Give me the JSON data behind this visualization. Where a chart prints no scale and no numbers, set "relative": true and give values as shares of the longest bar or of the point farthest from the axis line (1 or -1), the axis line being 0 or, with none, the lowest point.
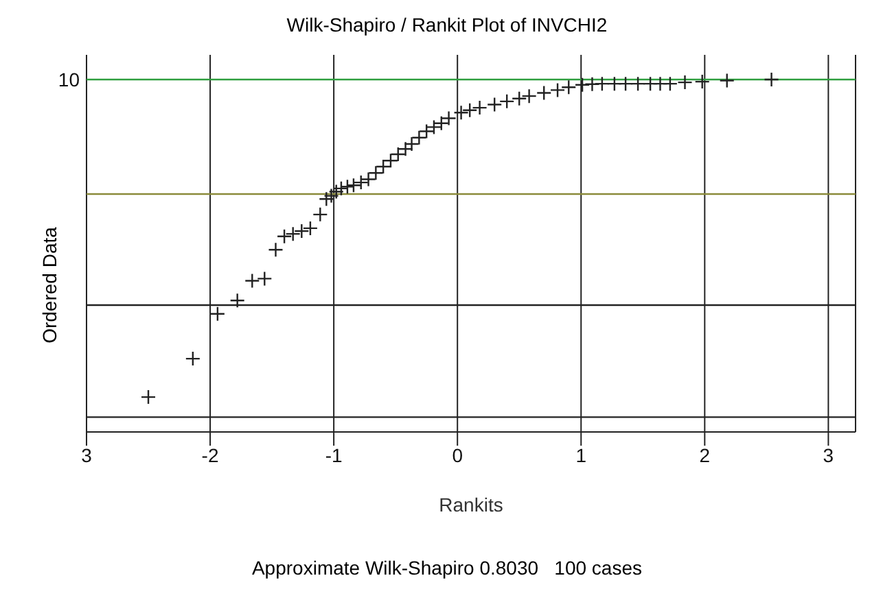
{
  "chart_data": {
    "type": "scatter",
    "title": "Wilk-Shapiro / Rankit Plot of INVCHI2",
    "xlabel": "Rankits",
    "ylabel": "Ordered Data",
    "relative": true,
    "marker": "cross",
    "grid": "x",
    "annotations": [
      "10",
      "Approximate Wilk-Shapiro 0.8030   100 cases"
    ],
    "xlim": [
      -3,
      3.22
    ],
    "xticks": [
      {
        "value": -3,
        "label": "3"
      },
      -2,
      -1,
      0,
      1,
      2,
      3
    ],
    "ref_lines": [
      {
        "axis": "y",
        "value": 1,
        "color": "#2e9e3e"
      },
      {
        "axis": "y",
        "value": 0.675,
        "label": null,
        "color": "#8a8a3a"
      },
      {
        "axis": "y",
        "value": 0.36,
        "label": null,
        "color": "#222222"
      },
      {
        "axis": "y",
        "value": 0.042,
        "label": null,
        "color": "#222222"
      }
    ],
    "series": [
      {
        "color": "#222222",
        "x": [
          -2.5,
          -2.14,
          -1.94,
          -1.78,
          -1.66,
          -1.56,
          -1.47,
          -1.4,
          -1.33,
          -1.26,
          -1.19,
          -1.11,
          -1.06,
          -1.02,
          -0.98,
          -0.94,
          -0.89,
          -0.84,
          -0.78,
          -0.72,
          -0.66,
          -0.6,
          -0.54,
          -0.48,
          -0.42,
          -0.37,
          -0.31,
          -0.25,
          -0.19,
          -0.13,
          -0.07,
          0.03,
          0.1,
          0.18,
          0.3,
          0.4,
          0.5,
          0.58,
          0.7,
          0.81,
          0.9,
          1.01,
          1.09,
          1.17,
          1.27,
          1.36,
          1.46,
          1.56,
          1.64,
          1.72,
          1.84,
          1.98,
          2.18,
          2.54
        ],
        "values": [
          0.099,
          0.208,
          0.335,
          0.373,
          0.429,
          0.435,
          0.517,
          0.555,
          0.562,
          0.57,
          0.578,
          0.617,
          0.661,
          0.67,
          0.682,
          0.691,
          0.696,
          0.7,
          0.708,
          0.717,
          0.735,
          0.753,
          0.77,
          0.788,
          0.803,
          0.817,
          0.835,
          0.853,
          0.865,
          0.876,
          0.89,
          0.906,
          0.913,
          0.92,
          0.929,
          0.938,
          0.946,
          0.953,
          0.962,
          0.97,
          0.978,
          0.985,
          0.987,
          0.988,
          0.988,
          0.988,
          0.988,
          0.988,
          0.988,
          0.988,
          0.992,
          0.994,
          0.997,
          1.0
        ]
      }
    ]
  }
}
